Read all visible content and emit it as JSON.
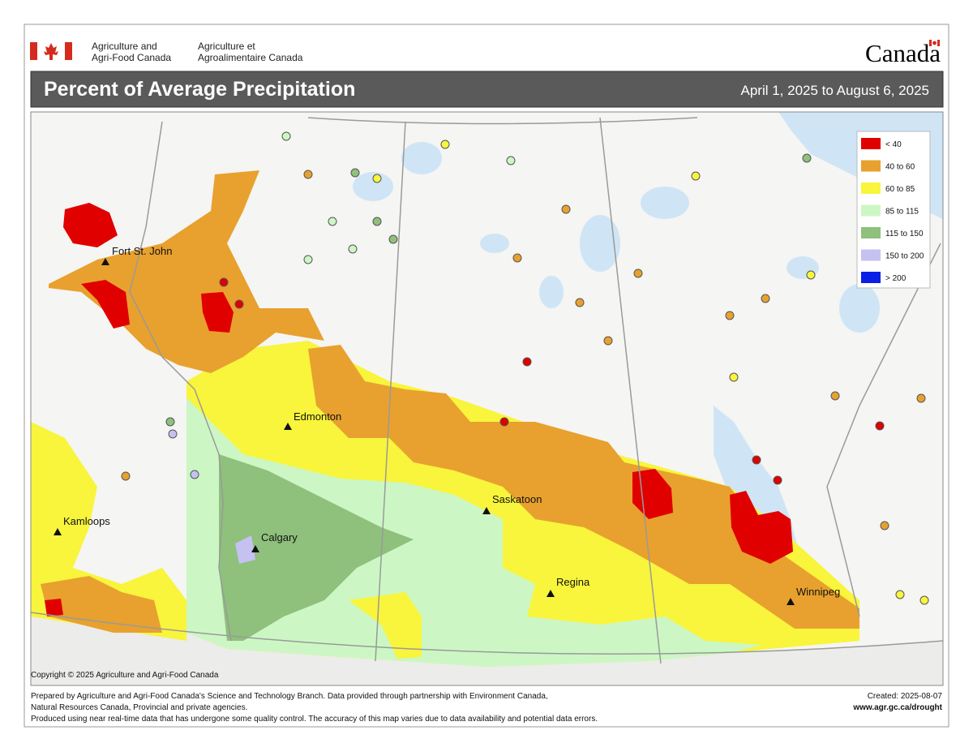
{
  "header": {
    "department_en": [
      "Agriculture and",
      "Agri-Food Canada"
    ],
    "department_fr": [
      "Agriculture et",
      "Agroalimentaire Canada"
    ],
    "wordmark": "Canada"
  },
  "title": "Percent of Average Precipitation",
  "date_range": "April 1, 2025 to August 6, 2025",
  "legend": [
    {
      "label": "< 40",
      "color": "#e00000"
    },
    {
      "label": "40 to 60",
      "color": "#e8a12e"
    },
    {
      "label": "60 to 85",
      "color": "#f8f53c"
    },
    {
      "label": "85 to 115",
      "color": "#ccf7c4"
    },
    {
      "label": "115 to 150",
      "color": "#8fc07c"
    },
    {
      "label": "150 to 200",
      "color": "#c5c2f2"
    },
    {
      "label": "> 200",
      "color": "#0a1ee8"
    }
  ],
  "cities": [
    "Fort St. John",
    "Edmonton",
    "Saskatoon",
    "Kamloops",
    "Calgary",
    "Regina",
    "Winnipeg"
  ],
  "copyright": "Copyright © 2025 Agriculture and Agri-Food Canada",
  "footer": {
    "lines": [
      "Prepared by Agriculture and Agri-Food Canada's Science and Technology Branch. Data provided through partnership with Environment Canada,",
      "Natural Resources Canada, Provincial and private agencies.",
      "Produced using near real-time data that has undergone some quality control. The accuracy of this map varies due to data availability and potential data errors."
    ],
    "created": "Created: 2025-08-07",
    "url": "www.agr.gc.ca/drought"
  }
}
